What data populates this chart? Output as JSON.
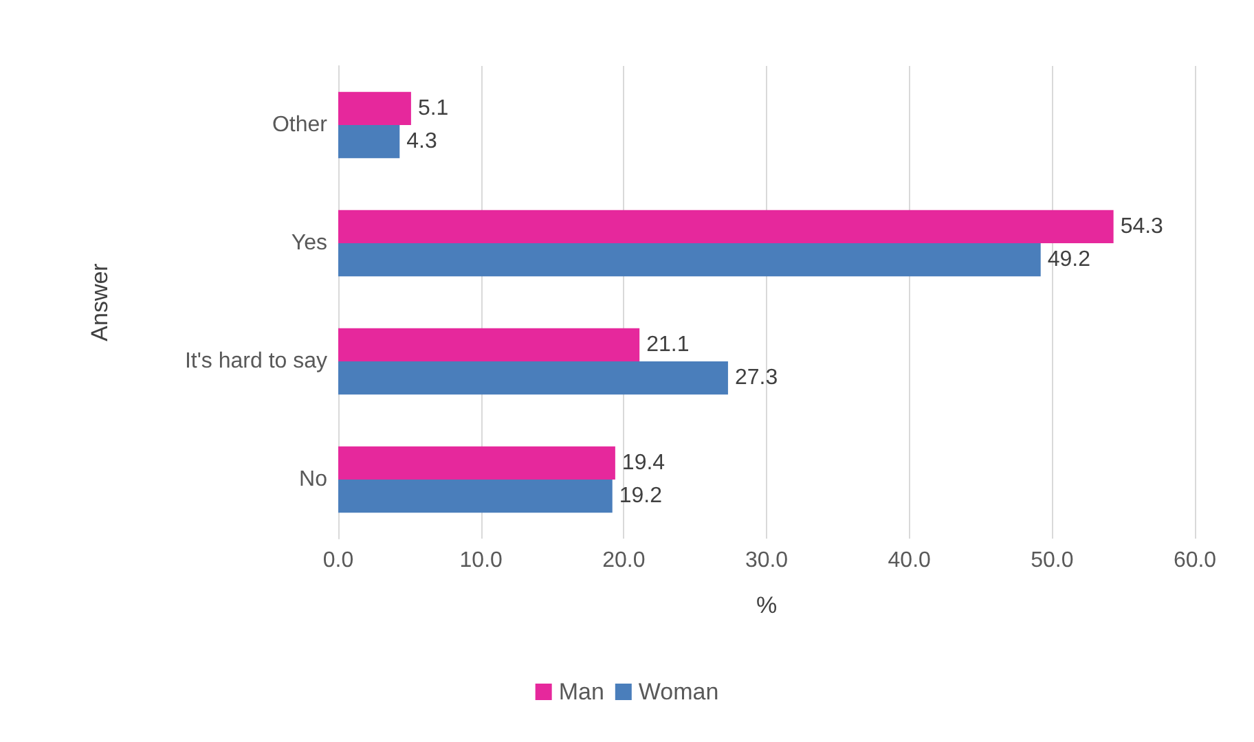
{
  "chart_data": {
    "type": "bar",
    "orientation": "horizontal",
    "xlabel": "%",
    "ylabel": "Answer",
    "categories": [
      "Other",
      "Yes",
      "It's hard to say",
      "No"
    ],
    "series": [
      {
        "name": "Man",
        "color": "#e6289c",
        "values": [
          5.1,
          54.3,
          21.1,
          19.4
        ]
      },
      {
        "name": "Woman",
        "color": "#4a7ebb",
        "values": [
          4.3,
          49.2,
          27.3,
          19.2
        ]
      }
    ],
    "xlim": [
      0,
      60
    ],
    "xticks": [
      {
        "value": 0,
        "label": "0.0"
      },
      {
        "value": 10,
        "label": "10.0"
      },
      {
        "value": 20,
        "label": "20.0"
      },
      {
        "value": 30,
        "label": "30.0"
      },
      {
        "value": 40,
        "label": "40.0"
      },
      {
        "value": 50,
        "label": "50.0"
      },
      {
        "value": 60,
        "label": "60.0"
      }
    ],
    "grid": "x",
    "legend": "bottom",
    "data_labels": true
  }
}
